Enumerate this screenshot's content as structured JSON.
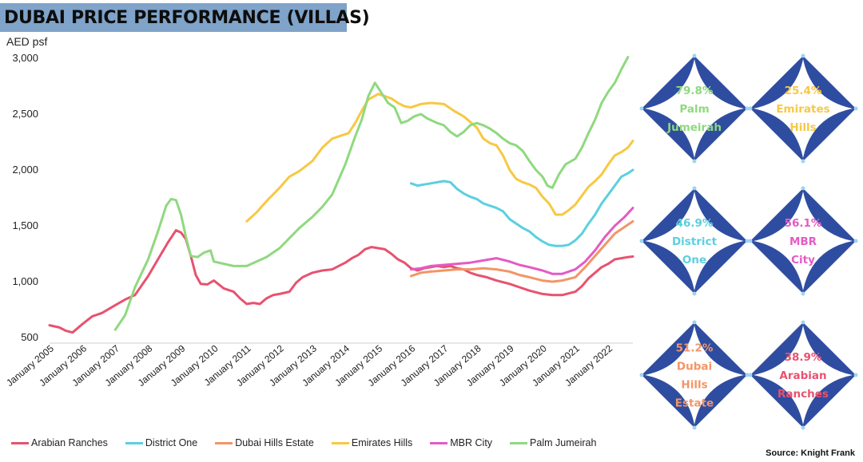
{
  "title": "DUBAI PRICE PERFORMANCE (VILLAS)",
  "unit_label": "AED psf",
  "source": "Source: Knight Frank",
  "chart_data": {
    "type": "line",
    "ylabel": "AED psf",
    "ylim": [
      450,
      3050
    ],
    "yticks": [
      500,
      1000,
      1500,
      2000,
      2500,
      3000
    ],
    "ytick_labels": [
      "500",
      "1,000",
      "1,500",
      "2,000",
      "2,500",
      "3,000"
    ],
    "xlim": [
      2005,
      2022.75
    ],
    "xticks": [
      2005,
      2006,
      2007,
      2008,
      2009,
      2010,
      2011,
      2012,
      2013,
      2014,
      2015,
      2016,
      2017,
      2018,
      2019,
      2020,
      2021,
      2022
    ],
    "xtick_labels": [
      "January 2005",
      "January 2006",
      "January 2007",
      "January 2008",
      "January 2009",
      "January 2010",
      "January 2011",
      "January 2012",
      "January 2013",
      "January 2014",
      "January 2015",
      "January 2016",
      "January 2017",
      "January 2018",
      "January 2019",
      "January 2020",
      "January 2021",
      "January 2022"
    ],
    "legend_position": "bottom",
    "grid": false,
    "series": [
      {
        "name": "Arabian Ranches",
        "color": "#e8526f",
        "points": [
          [
            2005,
            610
          ],
          [
            2005.3,
            590
          ],
          [
            2005.5,
            560
          ],
          [
            2005.7,
            545
          ],
          [
            2006,
            620
          ],
          [
            2006.3,
            690
          ],
          [
            2006.6,
            720
          ],
          [
            2007,
            790
          ],
          [
            2007.3,
            840
          ],
          [
            2007.6,
            880
          ],
          [
            2008,
            1050
          ],
          [
            2008.3,
            1200
          ],
          [
            2008.6,
            1350
          ],
          [
            2008.85,
            1460
          ],
          [
            2009,
            1440
          ],
          [
            2009.15,
            1380
          ],
          [
            2009.3,
            1230
          ],
          [
            2009.45,
            1060
          ],
          [
            2009.6,
            980
          ],
          [
            2009.8,
            975
          ],
          [
            2010,
            1010
          ],
          [
            2010.3,
            940
          ],
          [
            2010.6,
            910
          ],
          [
            2010.8,
            850
          ],
          [
            2011,
            800
          ],
          [
            2011.2,
            810
          ],
          [
            2011.4,
            800
          ],
          [
            2011.6,
            850
          ],
          [
            2011.8,
            880
          ],
          [
            2012,
            890
          ],
          [
            2012.3,
            910
          ],
          [
            2012.5,
            990
          ],
          [
            2012.7,
            1040
          ],
          [
            2013,
            1080
          ],
          [
            2013.3,
            1100
          ],
          [
            2013.6,
            1110
          ],
          [
            2014,
            1170
          ],
          [
            2014.2,
            1210
          ],
          [
            2014.4,
            1240
          ],
          [
            2014.6,
            1290
          ],
          [
            2014.8,
            1310
          ],
          [
            2015,
            1300
          ],
          [
            2015.2,
            1290
          ],
          [
            2015.4,
            1250
          ],
          [
            2015.6,
            1200
          ],
          [
            2015.8,
            1170
          ],
          [
            2016,
            1120
          ],
          [
            2016.2,
            1100
          ],
          [
            2016.4,
            1120
          ],
          [
            2016.6,
            1130
          ],
          [
            2016.8,
            1140
          ],
          [
            2017,
            1130
          ],
          [
            2017.2,
            1140
          ],
          [
            2017.4,
            1120
          ],
          [
            2017.6,
            1110
          ],
          [
            2017.8,
            1080
          ],
          [
            2018,
            1060
          ],
          [
            2018.3,
            1040
          ],
          [
            2018.6,
            1010
          ],
          [
            2019,
            980
          ],
          [
            2019.3,
            950
          ],
          [
            2019.6,
            920
          ],
          [
            2020,
            890
          ],
          [
            2020.3,
            880
          ],
          [
            2020.6,
            880
          ],
          [
            2021,
            910
          ],
          [
            2021.2,
            960
          ],
          [
            2021.4,
            1030
          ],
          [
            2021.6,
            1080
          ],
          [
            2021.8,
            1130
          ],
          [
            2022,
            1160
          ],
          [
            2022.2,
            1200
          ],
          [
            2022.4,
            1210
          ],
          [
            2022.6,
            1220
          ],
          [
            2022.75,
            1225
          ]
        ]
      },
      {
        "name": "District One",
        "color": "#5ad0e0",
        "points": [
          [
            2016,
            1880
          ],
          [
            2016.2,
            1860
          ],
          [
            2016.4,
            1870
          ],
          [
            2016.6,
            1880
          ],
          [
            2016.8,
            1890
          ],
          [
            2017,
            1900
          ],
          [
            2017.2,
            1890
          ],
          [
            2017.4,
            1830
          ],
          [
            2017.6,
            1790
          ],
          [
            2017.8,
            1760
          ],
          [
            2018,
            1740
          ],
          [
            2018.2,
            1700
          ],
          [
            2018.4,
            1680
          ],
          [
            2018.6,
            1660
          ],
          [
            2018.8,
            1630
          ],
          [
            2019,
            1560
          ],
          [
            2019.2,
            1520
          ],
          [
            2019.4,
            1480
          ],
          [
            2019.6,
            1450
          ],
          [
            2019.8,
            1400
          ],
          [
            2020,
            1360
          ],
          [
            2020.2,
            1330
          ],
          [
            2020.4,
            1320
          ],
          [
            2020.6,
            1320
          ],
          [
            2020.8,
            1330
          ],
          [
            2021,
            1370
          ],
          [
            2021.2,
            1430
          ],
          [
            2021.4,
            1520
          ],
          [
            2021.6,
            1600
          ],
          [
            2021.8,
            1700
          ],
          [
            2022,
            1780
          ],
          [
            2022.2,
            1860
          ],
          [
            2022.4,
            1940
          ],
          [
            2022.6,
            1970
          ],
          [
            2022.75,
            2000
          ]
        ]
      },
      {
        "name": "Dubai Hills Estate",
        "color": "#f39566",
        "points": [
          [
            2016,
            1050
          ],
          [
            2016.3,
            1080
          ],
          [
            2016.6,
            1090
          ],
          [
            2017,
            1100
          ],
          [
            2017.4,
            1110
          ],
          [
            2017.8,
            1110
          ],
          [
            2018.2,
            1120
          ],
          [
            2018.6,
            1110
          ],
          [
            2019,
            1090
          ],
          [
            2019.3,
            1060
          ],
          [
            2019.6,
            1040
          ],
          [
            2020,
            1010
          ],
          [
            2020.3,
            1000
          ],
          [
            2020.6,
            1010
          ],
          [
            2021,
            1040
          ],
          [
            2021.3,
            1130
          ],
          [
            2021.6,
            1230
          ],
          [
            2021.9,
            1330
          ],
          [
            2022.2,
            1430
          ],
          [
            2022.5,
            1490
          ],
          [
            2022.75,
            1540
          ]
        ]
      },
      {
        "name": "Emirates Hills",
        "color": "#f7c843",
        "points": [
          [
            2011,
            1540
          ],
          [
            2011.3,
            1620
          ],
          [
            2011.6,
            1720
          ],
          [
            2012,
            1840
          ],
          [
            2012.3,
            1940
          ],
          [
            2012.6,
            1990
          ],
          [
            2013,
            2080
          ],
          [
            2013.3,
            2200
          ],
          [
            2013.6,
            2280
          ],
          [
            2013.9,
            2310
          ],
          [
            2014.1,
            2330
          ],
          [
            2014.3,
            2420
          ],
          [
            2014.5,
            2530
          ],
          [
            2014.7,
            2630
          ],
          [
            2015,
            2680
          ],
          [
            2015.2,
            2660
          ],
          [
            2015.4,
            2640
          ],
          [
            2015.6,
            2600
          ],
          [
            2015.8,
            2570
          ],
          [
            2016,
            2560
          ],
          [
            2016.3,
            2590
          ],
          [
            2016.6,
            2600
          ],
          [
            2017,
            2590
          ],
          [
            2017.3,
            2530
          ],
          [
            2017.6,
            2480
          ],
          [
            2018,
            2380
          ],
          [
            2018.2,
            2280
          ],
          [
            2018.4,
            2240
          ],
          [
            2018.6,
            2220
          ],
          [
            2018.8,
            2130
          ],
          [
            2019,
            2000
          ],
          [
            2019.2,
            1920
          ],
          [
            2019.4,
            1890
          ],
          [
            2019.6,
            1870
          ],
          [
            2019.8,
            1840
          ],
          [
            2020,
            1760
          ],
          [
            2020.2,
            1700
          ],
          [
            2020.4,
            1600
          ],
          [
            2020.6,
            1600
          ],
          [
            2020.8,
            1640
          ],
          [
            2021,
            1690
          ],
          [
            2021.2,
            1770
          ],
          [
            2021.4,
            1850
          ],
          [
            2021.6,
            1900
          ],
          [
            2021.8,
            1960
          ],
          [
            2022,
            2050
          ],
          [
            2022.2,
            2130
          ],
          [
            2022.4,
            2160
          ],
          [
            2022.6,
            2200
          ],
          [
            2022.75,
            2260
          ]
        ]
      },
      {
        "name": "MBR City",
        "color": "#e45bc4",
        "points": [
          [
            2016,
            1110
          ],
          [
            2016.3,
            1120
          ],
          [
            2016.6,
            1140
          ],
          [
            2017,
            1150
          ],
          [
            2017.4,
            1160
          ],
          [
            2017.8,
            1170
          ],
          [
            2018.2,
            1190
          ],
          [
            2018.6,
            1210
          ],
          [
            2019,
            1180
          ],
          [
            2019.3,
            1150
          ],
          [
            2019.6,
            1130
          ],
          [
            2020,
            1100
          ],
          [
            2020.3,
            1070
          ],
          [
            2020.6,
            1070
          ],
          [
            2021,
            1110
          ],
          [
            2021.3,
            1180
          ],
          [
            2021.6,
            1280
          ],
          [
            2021.9,
            1400
          ],
          [
            2022.2,
            1500
          ],
          [
            2022.5,
            1580
          ],
          [
            2022.75,
            1660
          ]
        ]
      },
      {
        "name": "Palm Jumeirah",
        "color": "#8fd97f",
        "points": [
          [
            2007,
            570
          ],
          [
            2007.3,
            700
          ],
          [
            2007.6,
            950
          ],
          [
            2008,
            1200
          ],
          [
            2008.3,
            1450
          ],
          [
            2008.55,
            1680
          ],
          [
            2008.7,
            1740
          ],
          [
            2008.85,
            1730
          ],
          [
            2009,
            1600
          ],
          [
            2009.15,
            1400
          ],
          [
            2009.3,
            1230
          ],
          [
            2009.5,
            1220
          ],
          [
            2009.7,
            1260
          ],
          [
            2009.9,
            1280
          ],
          [
            2010,
            1180
          ],
          [
            2010.3,
            1160
          ],
          [
            2010.6,
            1140
          ],
          [
            2011,
            1140
          ],
          [
            2011.3,
            1180
          ],
          [
            2011.6,
            1220
          ],
          [
            2012,
            1300
          ],
          [
            2012.3,
            1390
          ],
          [
            2012.6,
            1480
          ],
          [
            2013,
            1580
          ],
          [
            2013.3,
            1670
          ],
          [
            2013.6,
            1780
          ],
          [
            2014,
            2050
          ],
          [
            2014.3,
            2300
          ],
          [
            2014.5,
            2450
          ],
          [
            2014.7,
            2660
          ],
          [
            2014.9,
            2780
          ],
          [
            2015.1,
            2690
          ],
          [
            2015.3,
            2600
          ],
          [
            2015.5,
            2560
          ],
          [
            2015.7,
            2420
          ],
          [
            2015.9,
            2440
          ],
          [
            2016.1,
            2480
          ],
          [
            2016.3,
            2500
          ],
          [
            2016.5,
            2460
          ],
          [
            2016.8,
            2420
          ],
          [
            2017,
            2400
          ],
          [
            2017.2,
            2340
          ],
          [
            2017.4,
            2300
          ],
          [
            2017.6,
            2340
          ],
          [
            2017.8,
            2400
          ],
          [
            2018,
            2420
          ],
          [
            2018.2,
            2400
          ],
          [
            2018.4,
            2370
          ],
          [
            2018.6,
            2330
          ],
          [
            2018.8,
            2280
          ],
          [
            2019,
            2240
          ],
          [
            2019.2,
            2220
          ],
          [
            2019.4,
            2170
          ],
          [
            2019.6,
            2080
          ],
          [
            2019.8,
            2000
          ],
          [
            2020,
            1940
          ],
          [
            2020.15,
            1860
          ],
          [
            2020.3,
            1840
          ],
          [
            2020.5,
            1960
          ],
          [
            2020.7,
            2050
          ],
          [
            2021,
            2100
          ],
          [
            2021.2,
            2200
          ],
          [
            2021.4,
            2330
          ],
          [
            2021.6,
            2450
          ],
          [
            2021.8,
            2600
          ],
          [
            2022,
            2700
          ],
          [
            2022.2,
            2780
          ],
          [
            2022.4,
            2900
          ],
          [
            2022.6,
            3010
          ]
        ]
      }
    ]
  },
  "stats": [
    {
      "value": "79.8%",
      "label_lines": [
        "Palm",
        "Jumeirah"
      ],
      "color": "#8fd97f"
    },
    {
      "value": "25.4%",
      "label_lines": [
        "Emirates",
        "Hills"
      ],
      "color": "#f7c843"
    },
    {
      "value": "46.9%",
      "label_lines": [
        "District",
        "One"
      ],
      "color": "#5ad0e0"
    },
    {
      "value": "56.1%",
      "label_lines": [
        "MBR",
        "City"
      ],
      "color": "#e45bc4"
    },
    {
      "value": "51.2%",
      "label_lines": [
        "Dubai",
        "Hills",
        "Estate"
      ],
      "color": "#f39566"
    },
    {
      "value": "38.9%",
      "label_lines": [
        "Arabian",
        "Ranches"
      ],
      "color": "#e8526f"
    }
  ],
  "frame_color": "#2f4da0"
}
